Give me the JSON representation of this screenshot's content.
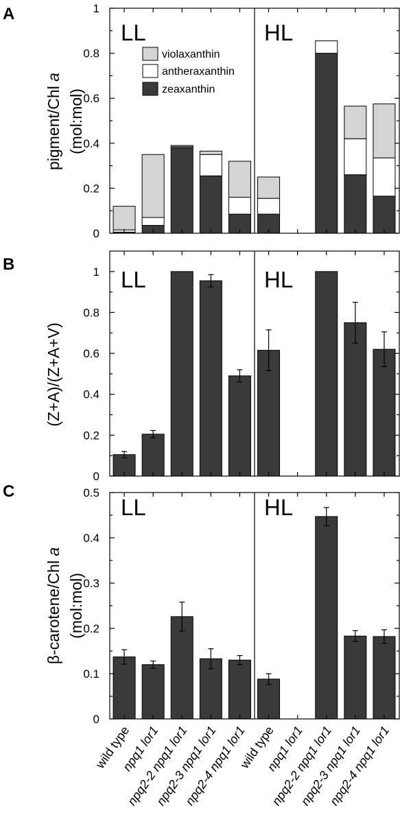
{
  "figure": {
    "categories": [
      {
        "label": "wild type",
        "italic": false
      },
      {
        "label": "npq1 lor1",
        "italic": true
      },
      {
        "label": "npq2-2 npq1 lor1",
        "italic": true
      },
      {
        "label": "npq2-3 npq1 lor1",
        "italic": true
      },
      {
        "label": "npq2-4 npq1 lor1",
        "italic": true
      },
      {
        "label": "wild type",
        "italic": false
      },
      {
        "label": "npq1 lor1",
        "italic": true
      },
      {
        "label": "npq2-2 npq1 lor1",
        "italic": true
      },
      {
        "label": "npq2-3 npq1 lor1",
        "italic": true
      },
      {
        "label": "npq2-4 npq1 lor1",
        "italic": true
      }
    ],
    "conditions": [
      "LL",
      "HL"
    ],
    "colors": {
      "zeaxanthin": "#3a3a3a",
      "antheraxanthin": "#ffffff",
      "violaxanthin": "#d4d4d4",
      "bar": "#3a3a3a"
    }
  },
  "chart_data": [
    {
      "panel": "A",
      "type": "bar",
      "stacked": true,
      "ylabel": "pigment/Chl a (mol:mol)",
      "ylim": [
        0,
        1
      ],
      "yticks": [
        "0",
        "0.2",
        "0.4",
        "0.6",
        "0.8",
        "1"
      ],
      "legend_position": "top-left of LL",
      "series": [
        {
          "name": "zeaxanthin",
          "values": [
            0.005,
            0.035,
            0.38,
            0.255,
            0.085,
            0.085,
            0,
            0.8,
            0.26,
            0.165
          ]
        },
        {
          "name": "antheraxanthin",
          "values": [
            0.01,
            0.035,
            0.005,
            0.095,
            0.075,
            0.07,
            0,
            0.055,
            0.16,
            0.17
          ]
        },
        {
          "name": "violaxanthin",
          "values": [
            0.105,
            0.28,
            0.005,
            0.015,
            0.16,
            0.095,
            0,
            0,
            0.145,
            0.24
          ]
        }
      ]
    },
    {
      "panel": "B",
      "type": "bar",
      "ylabel": "(Z+A)/(Z+A+V)",
      "ylim": [
        0,
        1.1
      ],
      "yticks": [
        "0",
        "0.2",
        "0.4",
        "0.6",
        "0.8",
        "1"
      ],
      "values": [
        0.105,
        0.205,
        1.0,
        0.955,
        0.49,
        0.615,
        null,
        1.0,
        0.75,
        0.62
      ],
      "errors": [
        0.015,
        0.018,
        0,
        0.03,
        0.03,
        0.1,
        null,
        0,
        0.1,
        0.085
      ]
    },
    {
      "panel": "C",
      "type": "bar",
      "ylabel": "β-carotene/Chl a (mol:mol)",
      "ylim": [
        0,
        0.5
      ],
      "yticks": [
        "0",
        "0.1",
        "0.2",
        "0.3",
        "0.4",
        "0.5"
      ],
      "values": [
        0.137,
        0.12,
        0.226,
        0.133,
        0.13,
        0.088,
        null,
        0.447,
        0.183,
        0.182
      ],
      "errors": [
        0.016,
        0.008,
        0.032,
        0.022,
        0.01,
        0.012,
        null,
        0.02,
        0.012,
        0.015
      ]
    }
  ]
}
